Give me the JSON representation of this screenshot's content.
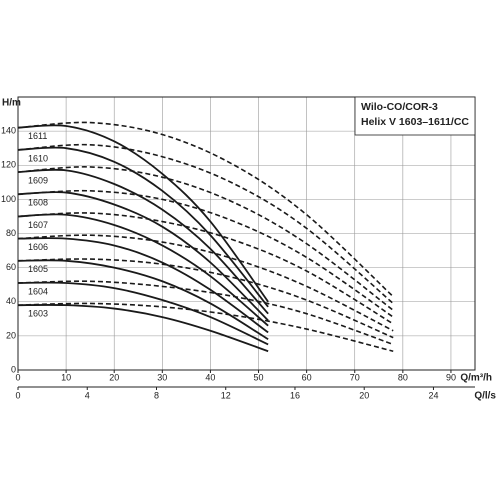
{
  "chart_data": {
    "type": "line",
    "title_lines": [
      "Wilo-CO/COR-3",
      "Helix V 1603–1611/CC"
    ],
    "y_label": "H/m",
    "x_label": "Q/m³/h",
    "x2_label": "Q/l/s",
    "xlim": [
      0,
      95
    ],
    "xticks": [
      0,
      10,
      20,
      30,
      40,
      50,
      60,
      70,
      80,
      90
    ],
    "x2lim": [
      0,
      26.4
    ],
    "x2ticks": [
      0,
      4,
      8,
      12,
      16,
      20,
      24
    ],
    "ylim": [
      0,
      160
    ],
    "yticks": [
      0,
      20,
      40,
      60,
      80,
      100,
      120,
      140
    ],
    "grid": true,
    "color": "#1a1a1a",
    "x": [
      0,
      10,
      20,
      30,
      40,
      52
    ],
    "extended_x": [
      0,
      15,
      30,
      45,
      60,
      78
    ],
    "series": [
      {
        "name": "1603",
        "values": [
          38,
          38,
          36,
          31,
          23,
          11
        ],
        "extended_values": [
          38,
          39,
          37,
          32,
          24,
          11
        ]
      },
      {
        "name": "1604",
        "values": [
          51,
          51,
          48,
          41,
          31,
          15
        ],
        "extended_values": [
          51,
          52,
          49,
          43,
          33,
          15
        ]
      },
      {
        "name": "1605",
        "values": [
          64,
          64,
          60,
          52,
          39,
          18
        ],
        "extended_values": [
          64,
          65,
          62,
          54,
          41,
          19
        ]
      },
      {
        "name": "1606",
        "values": [
          77,
          77,
          73,
          63,
          47,
          22
        ],
        "extended_values": [
          77,
          79,
          75,
          65,
          49,
          23
        ]
      },
      {
        "name": "1607",
        "values": [
          90,
          91,
          85,
          73,
          55,
          26
        ],
        "extended_values": [
          90,
          92,
          87,
          76,
          58,
          27
        ]
      },
      {
        "name": "1608",
        "values": [
          103,
          104,
          97,
          84,
          63,
          29
        ],
        "extended_values": [
          103,
          105,
          100,
          87,
          66,
          31
        ]
      },
      {
        "name": "1609",
        "values": [
          116,
          117,
          109,
          94,
          71,
          33
        ],
        "extended_values": [
          116,
          119,
          113,
          98,
          74,
          35
        ]
      },
      {
        "name": "1610",
        "values": [
          129,
          130,
          122,
          105,
          79,
          37
        ],
        "extended_values": [
          129,
          132,
          125,
          109,
          83,
          39
        ]
      },
      {
        "name": "1611",
        "values": [
          142,
          143,
          134,
          115,
          87,
          40
        ],
        "extended_values": [
          142,
          145,
          138,
          120,
          91,
          43
        ]
      }
    ]
  }
}
